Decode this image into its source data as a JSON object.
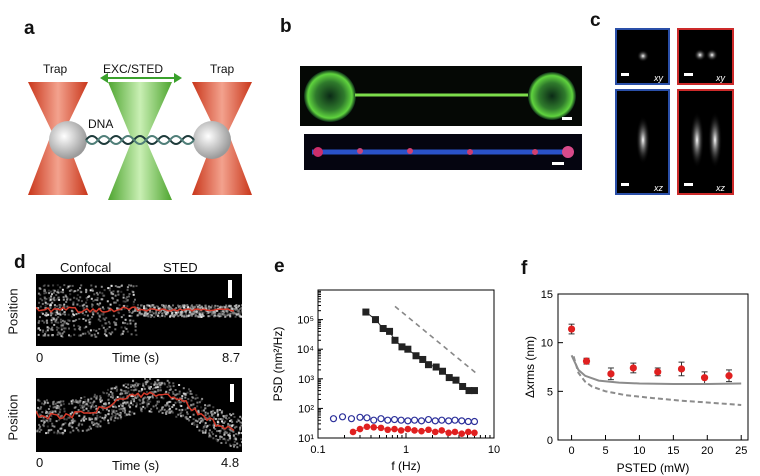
{
  "panels": {
    "a": {
      "letter": "a",
      "trap_left": "Trap",
      "trap_right": "Trap",
      "exc": "EXC/STED",
      "dna": "DNA"
    },
    "b": {
      "letter": "b"
    },
    "c": {
      "letter": "c",
      "xy1": "xy",
      "xy2": "xy",
      "xz1": "xz",
      "xz2": "xz"
    },
    "d": {
      "letter": "d",
      "confocal": "Confocal",
      "sted": "STED",
      "ylabel_top": "Position",
      "ylabel_bottom": "Position",
      "xlabel_top": "Time (s)",
      "xlabel_bottom": "Time (s)",
      "tmin_top": "0",
      "tmax_top": "8.7",
      "tmin_bottom": "0",
      "tmax_bottom": "4.8"
    },
    "e": {
      "letter": "e"
    },
    "f": {
      "letter": "f"
    }
  },
  "chart_data": [
    {
      "type": "scatter",
      "panel": "e",
      "xscale": "log",
      "yscale": "log",
      "xlabel": "f (Hz)",
      "ylabel": "PSD (nm²/Hz)",
      "xlim": [
        0.1,
        10
      ],
      "ylim": [
        10,
        1000000
      ],
      "x_ticks": [
        "0.1",
        "1",
        "10"
      ],
      "y_ticks": [
        "10¹",
        "10²",
        "10³",
        "10⁴",
        "10⁵"
      ],
      "series": [
        {
          "color": "#222222",
          "marker": "square-filled",
          "line": true,
          "points": [
            [
              0.35,
              180000
            ],
            [
              0.45,
              100000
            ],
            [
              0.55,
              50000
            ],
            [
              0.65,
              40000
            ],
            [
              0.75,
              20000
            ],
            [
              0.9,
              12000
            ],
            [
              1.05,
              10000
            ],
            [
              1.3,
              6000
            ],
            [
              1.55,
              4500
            ],
            [
              1.8,
              3000
            ],
            [
              2.2,
              2500
            ],
            [
              2.6,
              1800
            ],
            [
              3.1,
              1100
            ],
            [
              3.7,
              900
            ],
            [
              4.4,
              550
            ],
            [
              5.2,
              400
            ],
            [
              6.0,
              400
            ]
          ]
        },
        {
          "color": "#2b2f9a",
          "marker": "circle-open",
          "line": false,
          "points": [
            [
              0.15,
              45
            ],
            [
              0.19,
              52
            ],
            [
              0.24,
              45
            ],
            [
              0.3,
              50
            ],
            [
              0.36,
              48
            ],
            [
              0.43,
              40
            ],
            [
              0.52,
              45
            ],
            [
              0.62,
              40
            ],
            [
              0.74,
              42
            ],
            [
              0.88,
              40
            ],
            [
              1.05,
              38
            ],
            [
              1.25,
              40
            ],
            [
              1.5,
              38
            ],
            [
              1.8,
              42
            ],
            [
              2.15,
              38
            ],
            [
              2.55,
              40
            ],
            [
              3.05,
              38
            ],
            [
              3.6,
              40
            ],
            [
              4.3,
              38
            ],
            [
              5.1,
              36
            ],
            [
              6.0,
              36
            ]
          ]
        },
        {
          "color": "#e02020",
          "marker": "circle-filled",
          "line": true,
          "points": [
            [
              0.25,
              16
            ],
            [
              0.3,
              20
            ],
            [
              0.36,
              24
            ],
            [
              0.43,
              23
            ],
            [
              0.52,
              22
            ],
            [
              0.62,
              19
            ],
            [
              0.74,
              20
            ],
            [
              0.88,
              18
            ],
            [
              1.05,
              20
            ],
            [
              1.25,
              18
            ],
            [
              1.5,
              17
            ],
            [
              1.8,
              19
            ],
            [
              2.15,
              16
            ],
            [
              2.55,
              18
            ],
            [
              3.05,
              15
            ],
            [
              3.6,
              16
            ],
            [
              4.3,
              14
            ],
            [
              5.1,
              16
            ],
            [
              6.0,
              15
            ]
          ]
        },
        {
          "color": "#888888",
          "marker": "none",
          "line": true,
          "dash": true,
          "points": [
            [
              0.75,
              280000
            ],
            [
              6.2,
              1600
            ]
          ]
        }
      ]
    },
    {
      "type": "scatter",
      "panel": "f",
      "xlabel": "PSTED (mW)",
      "ylabel": "Δxrms (nm)",
      "xlim": [
        -2,
        26
      ],
      "ylim": [
        0,
        15
      ],
      "x_ticks": [
        "0",
        "5",
        "10",
        "15",
        "20",
        "25"
      ],
      "y_ticks": [
        "0",
        "5",
        "10",
        "15"
      ],
      "series": [
        {
          "color": "#e02020",
          "marker": "circle-filled",
          "errorbars": true,
          "points": [
            [
              0,
              11.4,
              0.5
            ],
            [
              2.2,
              8.1,
              0.3
            ],
            [
              5.8,
              6.8,
              0.6
            ],
            [
              9.1,
              7.4,
              0.5
            ],
            [
              12.7,
              7.0,
              0.4
            ],
            [
              16.2,
              7.3,
              0.7
            ],
            [
              19.6,
              6.4,
              0.6
            ],
            [
              23.2,
              6.6,
              0.6
            ]
          ]
        },
        {
          "color": "#8c8c8c",
          "marker": "none",
          "line": true,
          "points": [
            [
              0,
              8.7
            ],
            [
              1,
              7.2
            ],
            [
              2,
              6.6
            ],
            [
              4,
              6.1
            ],
            [
              7,
              5.9
            ],
            [
              10,
              5.8
            ],
            [
              15,
              5.75
            ],
            [
              20,
              5.75
            ],
            [
              25,
              5.8
            ]
          ]
        },
        {
          "color": "#8c8c8c",
          "marker": "none",
          "line": true,
          "dash": true,
          "points": [
            [
              0.3,
              8.6
            ],
            [
              1,
              6.9
            ],
            [
              2,
              6.0
            ],
            [
              3,
              5.5
            ],
            [
              5,
              5.0
            ],
            [
              8,
              4.6
            ],
            [
              12,
              4.3
            ],
            [
              16,
              4.05
            ],
            [
              20,
              3.85
            ],
            [
              25,
              3.6
            ]
          ]
        }
      ]
    }
  ]
}
